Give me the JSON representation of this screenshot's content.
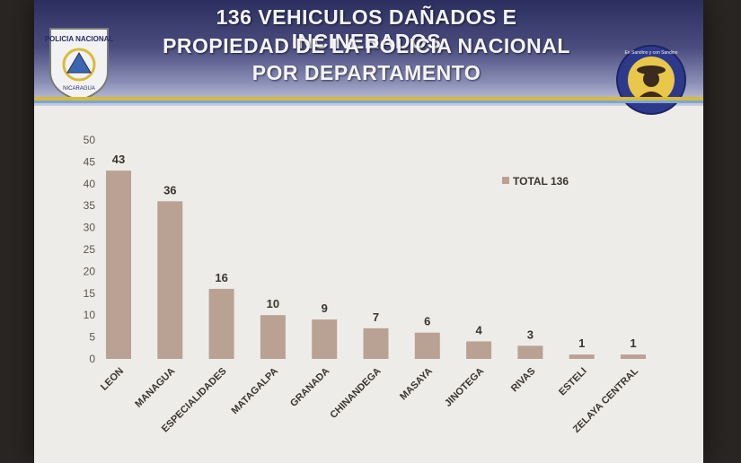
{
  "header": {
    "title_lines": [
      "136 VEHICULOS DAÑADOS E INCINERADOS",
      "PROPIEDAD DE LA POLICIA NACIONAL",
      "POR DEPARTAMENTO"
    ],
    "left_emblem_text": "POLICIA NACIONAL",
    "left_emblem_subtext": "NICARAGUA",
    "right_emblem_text": "En Sandino y con Sandino"
  },
  "colors": {
    "bar": "#b9a293",
    "axis_text": "#5a5450",
    "label_text": "#3a3430"
  },
  "chart_data": {
    "type": "bar",
    "categories": [
      "LEON",
      "MANAGUA",
      "ESPECIALIDADES",
      "MATAGALPA",
      "GRANADA",
      "CHINANDEGA",
      "MASAYA",
      "JINOTEGA",
      "RIVAS",
      "ESTELI",
      "ZELAYA CENTRAL"
    ],
    "series": [
      {
        "name": "TOTAL 136",
        "values": [
          43,
          36,
          16,
          10,
          9,
          7,
          6,
          4,
          3,
          1,
          1
        ]
      }
    ],
    "ylim": [
      0,
      50
    ],
    "yticks": [
      0,
      5,
      10,
      15,
      20,
      25,
      30,
      35,
      40,
      45,
      50
    ],
    "legend_position": "top-right",
    "grid": false
  }
}
